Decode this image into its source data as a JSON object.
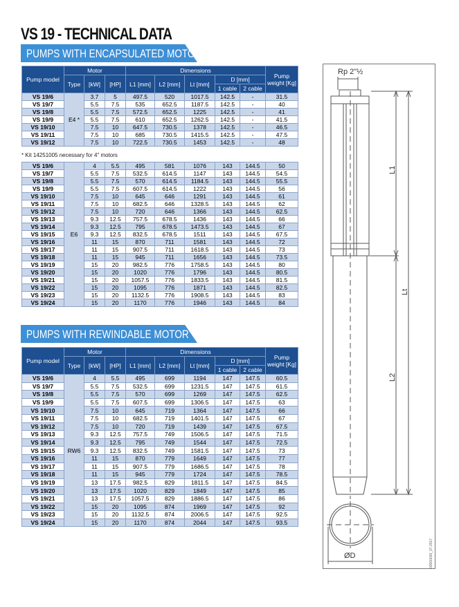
{
  "title": "VS 19 - TECHNICAL DATA",
  "header_labels": {
    "pump_model": "Pump model",
    "motor": "Motor",
    "type": "Type",
    "kw": "[kW]",
    "hp": "[HP]",
    "dimensions": "Dimensions",
    "l1": "L1 [mm]",
    "l2": "L2 [mm]",
    "lt": "Lt [mm]",
    "d": "D [mm]",
    "cable1": "1 cable",
    "cable2": "2 cable",
    "weight": "Pump weight [Kg]"
  },
  "encapsulated": {
    "heading": "PUMPS WITH ENCAPSULATED MOTOR",
    "table_e4": {
      "type": "E4 *",
      "rows": [
        [
          "VS 19/6",
          "3.7",
          "5",
          "497.5",
          "520",
          "1017.5",
          "142.5",
          "-",
          "31.5"
        ],
        [
          "VS 19/7",
          "5.5",
          "7.5",
          "535",
          "652.5",
          "1187.5",
          "142.5",
          "-",
          "40"
        ],
        [
          "VS 19/8",
          "5.5",
          "7.5",
          "572.5",
          "652.5",
          "1225",
          "142.5",
          "-",
          "41"
        ],
        [
          "VS 19/9",
          "5.5",
          "7.5",
          "610",
          "652.5",
          "1262.5",
          "142.5",
          "-",
          "41.5"
        ],
        [
          "VS 19/10",
          "7.5",
          "10",
          "647.5",
          "730.5",
          "1378",
          "142.5",
          "-",
          "46.5"
        ],
        [
          "VS 19/11",
          "7.5",
          "10",
          "685",
          "730.5",
          "1415.5",
          "142.5",
          "-",
          "47.5"
        ],
        [
          "VS 19/12",
          "7.5",
          "10",
          "722.5",
          "730.5",
          "1453",
          "142.5",
          "-",
          "48"
        ]
      ]
    },
    "note": "* Kit 14251005 necessary for 4\" motors",
    "table_e6": {
      "type": "E6",
      "rows": [
        [
          "VS 19/6",
          "4",
          "5.5",
          "495",
          "581",
          "1076",
          "143",
          "144.5",
          "50"
        ],
        [
          "VS 19/7",
          "5.5",
          "7.5",
          "532.5",
          "614.5",
          "1147",
          "143",
          "144.5",
          "54.5"
        ],
        [
          "VS 19/8",
          "5.5",
          "7.5",
          "570",
          "614.5",
          "1184.5",
          "143",
          "144.5",
          "55.5"
        ],
        [
          "VS 19/9",
          "5.5",
          "7.5",
          "607.5",
          "614.5",
          "1222",
          "143",
          "144.5",
          "56"
        ],
        [
          "VS 19/10",
          "7.5",
          "10",
          "645",
          "646",
          "1291",
          "143",
          "144.5",
          "61"
        ],
        [
          "VS 19/11",
          "7.5",
          "10",
          "682.5",
          "646",
          "1328.5",
          "143",
          "144.5",
          "62"
        ],
        [
          "VS 19/12",
          "7.5",
          "10",
          "720",
          "646",
          "1366",
          "143",
          "144.5",
          "62.5"
        ],
        [
          "VS 19/13",
          "9.3",
          "12.5",
          "757.5",
          "678.5",
          "1436",
          "143",
          "144.5",
          "66"
        ],
        [
          "VS 19/14",
          "9.3",
          "12.5",
          "795",
          "678.5",
          "1473.5",
          "143",
          "144.5",
          "67"
        ],
        [
          "VS 19/15",
          "9.3",
          "12.5",
          "832.5",
          "678.5",
          "1511",
          "143",
          "144.5",
          "67.5"
        ],
        [
          "VS 19/16",
          "11",
          "15",
          "870",
          "711",
          "1581",
          "143",
          "144.5",
          "72"
        ],
        [
          "VS 19/17",
          "11",
          "15",
          "907.5",
          "711",
          "1618.5",
          "143",
          "144.5",
          "73"
        ],
        [
          "VS 19/18",
          "11",
          "15",
          "945",
          "711",
          "1656",
          "143",
          "144.5",
          "73.5"
        ],
        [
          "VS 19/19",
          "15",
          "20",
          "982.5",
          "776",
          "1758.5",
          "143",
          "144.5",
          "80"
        ],
        [
          "VS 19/20",
          "15",
          "20",
          "1020",
          "776",
          "1796",
          "143",
          "144.5",
          "80.5"
        ],
        [
          "VS 19/21",
          "15",
          "20",
          "1057.5",
          "776",
          "1833.5",
          "143",
          "144.5",
          "81.5"
        ],
        [
          "VS 19/22",
          "15",
          "20",
          "1095",
          "776",
          "1871",
          "143",
          "144.5",
          "82.5"
        ],
        [
          "VS 19/23",
          "15",
          "20",
          "1132.5",
          "776",
          "1908.5",
          "143",
          "144.5",
          "83"
        ],
        [
          "VS 19/24",
          "15",
          "20",
          "1170",
          "776",
          "1946",
          "143",
          "144.5",
          "84"
        ]
      ]
    }
  },
  "rewindable": {
    "heading": "PUMPS WITH REWINDABLE MOTOR",
    "table_rw6": {
      "type": "RW6",
      "rows": [
        [
          "VS 19/6",
          "4",
          "5.5",
          "495",
          "699",
          "1194",
          "147",
          "147.5",
          "60.5"
        ],
        [
          "VS 19/7",
          "5.5",
          "7.5",
          "532.5",
          "699",
          "1231.5",
          "147",
          "147.5",
          "61.5"
        ],
        [
          "VS 19/8",
          "5.5",
          "7.5",
          "570",
          "699",
          "1269",
          "147",
          "147.5",
          "62.5"
        ],
        [
          "VS 19/9",
          "5.5",
          "7.5",
          "607.5",
          "699",
          "1306.5",
          "147",
          "147.5",
          "63"
        ],
        [
          "VS 19/10",
          "7.5",
          "10",
          "645",
          "719",
          "1364",
          "147",
          "147.5",
          "66"
        ],
        [
          "VS 19/11",
          "7.5",
          "10",
          "682.5",
          "719",
          "1401.5",
          "147",
          "147.5",
          "67"
        ],
        [
          "VS 19/12",
          "7.5",
          "10",
          "720",
          "719",
          "1439",
          "147",
          "147.5",
          "67.5"
        ],
        [
          "VS 19/13",
          "9.3",
          "12.5",
          "757.5",
          "749",
          "1506.5",
          "147",
          "147.5",
          "71.5"
        ],
        [
          "VS 19/14",
          "9.3",
          "12.5",
          "795",
          "749",
          "1544",
          "147",
          "147.5",
          "72.5"
        ],
        [
          "VS 19/15",
          "9.3",
          "12.5",
          "832.5",
          "749",
          "1581.5",
          "147",
          "147.5",
          "73"
        ],
        [
          "VS 19/16",
          "11",
          "15",
          "870",
          "779",
          "1649",
          "147",
          "147.5",
          "77"
        ],
        [
          "VS 19/17",
          "11",
          "15",
          "907.5",
          "779",
          "1686.5",
          "147",
          "147.5",
          "78"
        ],
        [
          "VS 19/18",
          "11",
          "15",
          "945",
          "779",
          "1724",
          "147",
          "147.5",
          "78.5"
        ],
        [
          "VS 19/19",
          "13",
          "17.5",
          "982.5",
          "829",
          "1811.5",
          "147",
          "147.5",
          "84.5"
        ],
        [
          "VS 19/20",
          "13",
          "17.5",
          "1020",
          "829",
          "1849",
          "147",
          "147.5",
          "85"
        ],
        [
          "VS 19/21",
          "13",
          "17.5",
          "1057.5",
          "829",
          "1886.5",
          "147",
          "147.5",
          "86"
        ],
        [
          "VS 19/22",
          "15",
          "20",
          "1095",
          "874",
          "1969",
          "147",
          "147.5",
          "92"
        ],
        [
          "VS 19/23",
          "15",
          "20",
          "1132.5",
          "874",
          "2006.5",
          "147",
          "147.5",
          "92.5"
        ],
        [
          "VS 19/24",
          "15",
          "20",
          "1170",
          "874",
          "2044",
          "147",
          "147.5",
          "93.5"
        ]
      ]
    }
  },
  "diagram": {
    "connection": "Rp 2\"½",
    "l1": "L1",
    "l2": "L2",
    "lt": "Lt",
    "diameter": "ØD",
    "drawing_code": "00500036_07.2017"
  },
  "colors": {
    "header_bg": "#1d4f91",
    "banner_bg": "#3d8fd6",
    "row_alt": "#c9d6ea"
  }
}
